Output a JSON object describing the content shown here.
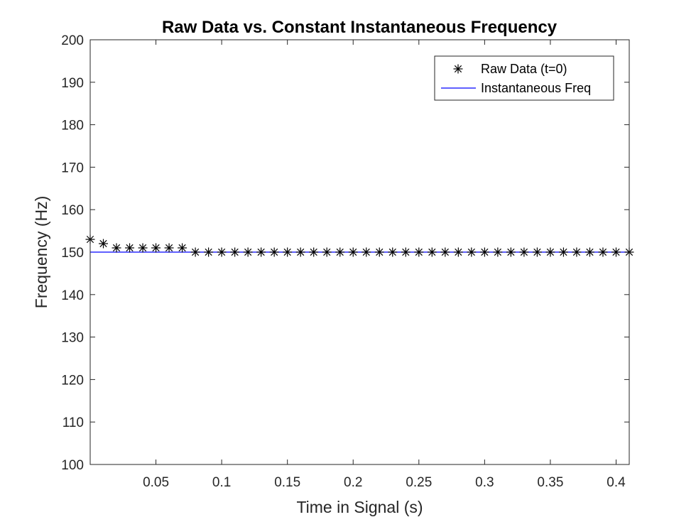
{
  "chart_data": {
    "type": "line",
    "title": "Raw Data vs. Constant Instantaneous Frequency",
    "xlabel": "Time in Signal (s)",
    "ylabel": "Frequency (Hz)",
    "xlim": [
      0,
      0.41
    ],
    "ylim": [
      100,
      200
    ],
    "x_ticks": [
      0.05,
      0.1,
      0.15,
      0.2,
      0.25,
      0.3,
      0.35,
      0.4
    ],
    "x_tick_labels": [
      "0.05",
      "0.1",
      "0.15",
      "0.2",
      "0.25",
      "0.3",
      "0.35",
      "0.4"
    ],
    "y_ticks": [
      100,
      110,
      120,
      130,
      140,
      150,
      160,
      170,
      180,
      190,
      200
    ],
    "y_tick_labels": [
      "100",
      "110",
      "120",
      "130",
      "140",
      "150",
      "160",
      "170",
      "180",
      "190",
      "200"
    ],
    "grid": false,
    "legend_position": "top-right",
    "series": [
      {
        "name": "Raw Data (t=0)",
        "marker": "asterisk",
        "color": "#000000",
        "x": [
          0,
          0.01,
          0.02,
          0.03,
          0.04,
          0.05,
          0.06,
          0.07,
          0.08,
          0.09,
          0.1,
          0.11,
          0.12,
          0.13,
          0.14,
          0.15,
          0.16,
          0.17,
          0.18,
          0.19,
          0.2,
          0.21,
          0.22,
          0.23,
          0.24,
          0.25,
          0.26,
          0.27,
          0.28,
          0.29,
          0.3,
          0.31,
          0.32,
          0.33,
          0.34,
          0.35,
          0.36,
          0.37,
          0.38,
          0.39,
          0.4,
          0.41
        ],
        "y": [
          153,
          152,
          151,
          151,
          151,
          151,
          151,
          151,
          150,
          150,
          150,
          150,
          150,
          150,
          150,
          150,
          150,
          150,
          150,
          150,
          150,
          150,
          150,
          150,
          150,
          150,
          150,
          150,
          150,
          150,
          150,
          150,
          150,
          150,
          150,
          150,
          150,
          150,
          150,
          150,
          150,
          150
        ]
      },
      {
        "name": "Instantaneous Freq",
        "marker": "line",
        "color": "#0000ff",
        "x": [
          0,
          0.41
        ],
        "y": [
          150,
          150
        ]
      }
    ]
  }
}
